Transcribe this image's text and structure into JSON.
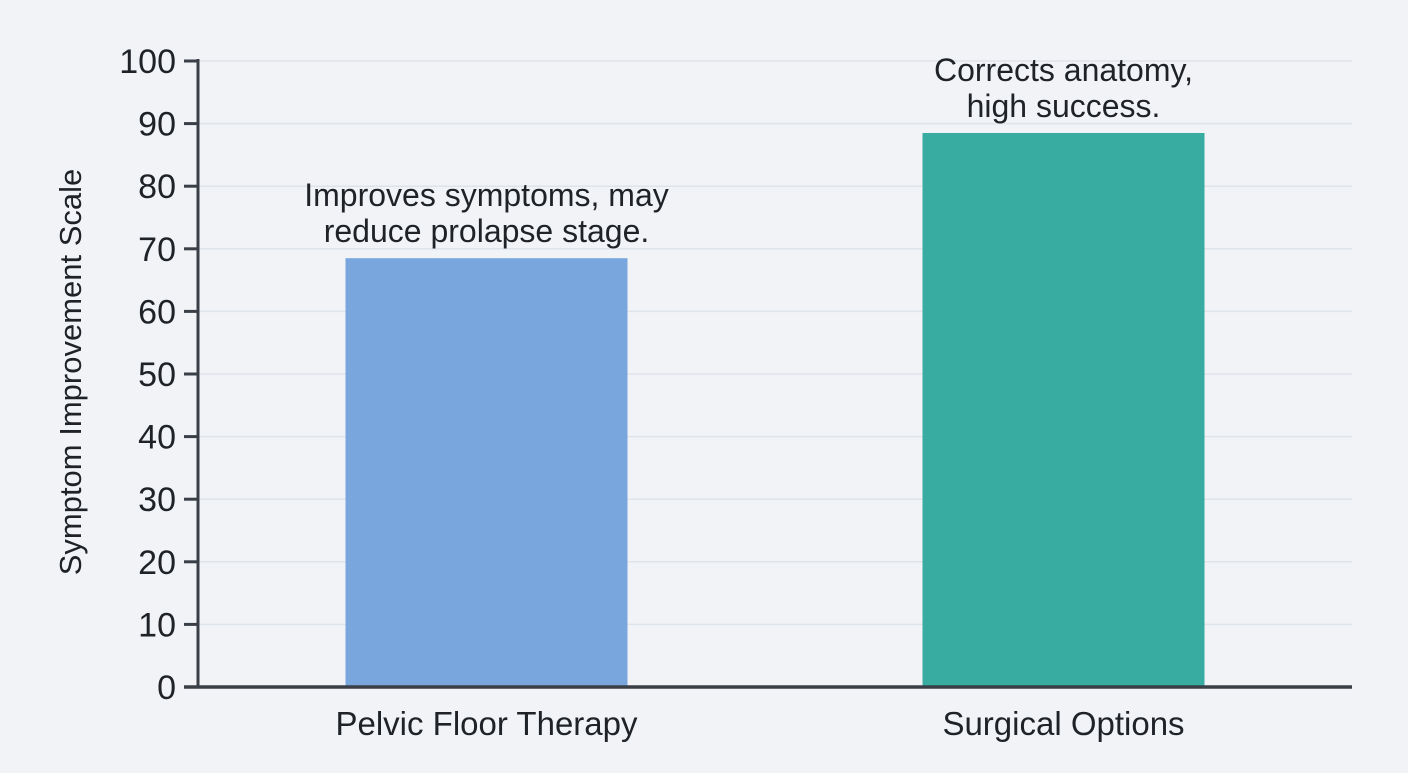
{
  "chart_data": {
    "type": "bar",
    "title": "",
    "xlabel": "",
    "ylabel": "Symptom Improvement Scale",
    "ylim": [
      0,
      100
    ],
    "yticks": [
      0,
      10,
      20,
      30,
      40,
      50,
      60,
      70,
      80,
      90,
      100
    ],
    "grid": true,
    "categories": [
      "Pelvic Floor Therapy",
      "Surgical Options"
    ],
    "values": [
      68.5,
      88.5
    ],
    "colors": [
      "#79a7dd",
      "#39aca1"
    ],
    "annotations": [
      [
        "Improves symptoms, may",
        "reduce prolapse stage."
      ],
      [
        "Corrects anatomy,",
        "high success."
      ]
    ]
  },
  "colors": {
    "background": "#f1f3f7",
    "gridline": "#dfe3ea",
    "axis": "#3a3f47",
    "text": "#1f2328"
  }
}
